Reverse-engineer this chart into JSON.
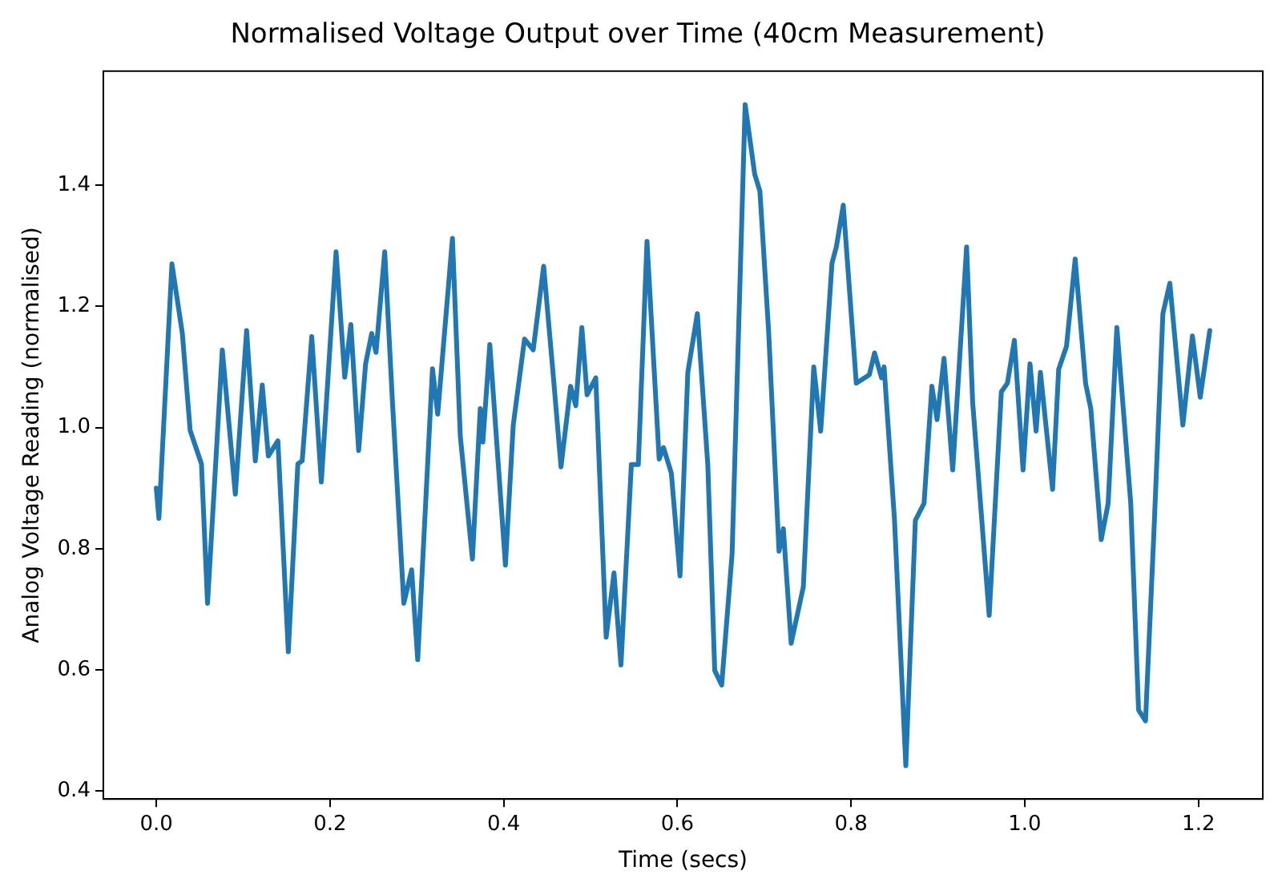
{
  "chart_data": {
    "type": "line",
    "title": "Normalised Voltage Output over Time (40cm Measurement)",
    "xlabel": "Time (secs)",
    "ylabel": "Analog Voltage Reading (normalised)",
    "xlim": [
      -0.061,
      1.274
    ],
    "ylim": [
      0.387,
      1.588
    ],
    "xticks": [
      {
        "value": 0,
        "label": "0.0"
      },
      {
        "value": 0.2,
        "label": "0.2"
      },
      {
        "value": 0.4,
        "label": "0.4"
      },
      {
        "value": 0.6,
        "label": "0.6"
      },
      {
        "value": 0.8,
        "label": "0.8"
      },
      {
        "value": 1.0,
        "label": "1.0"
      },
      {
        "value": 1.2,
        "label": "1.2"
      }
    ],
    "yticks": [
      {
        "value": 0.4,
        "label": "0.4"
      },
      {
        "value": 0.6,
        "label": "0.6"
      },
      {
        "value": 0.8,
        "label": "0.8"
      },
      {
        "value": 1.0,
        "label": "1.0"
      },
      {
        "value": 1.2,
        "label": "1.2"
      },
      {
        "value": 1.4,
        "label": "1.4"
      }
    ],
    "grid": false,
    "legend": false,
    "marker": "none",
    "line_style": "solid",
    "series": [
      {
        "color": "#1f77b4",
        "x": [
          0.0,
          0.003,
          0.018,
          0.03,
          0.039,
          0.052,
          0.059,
          0.076,
          0.091,
          0.104,
          0.114,
          0.122,
          0.129,
          0.14,
          0.152,
          0.163,
          0.168,
          0.179,
          0.19,
          0.207,
          0.217,
          0.224,
          0.233,
          0.241,
          0.248,
          0.253,
          0.263,
          0.272,
          0.285,
          0.294,
          0.301,
          0.318,
          0.324,
          0.341,
          0.35,
          0.364,
          0.373,
          0.376,
          0.384,
          0.402,
          0.411,
          0.424,
          0.434,
          0.446,
          0.457,
          0.466,
          0.477,
          0.483,
          0.49,
          0.496,
          0.506,
          0.518,
          0.527,
          0.535,
          0.547,
          0.555,
          0.565,
          0.579,
          0.584,
          0.593,
          0.603,
          0.612,
          0.623,
          0.635,
          0.643,
          0.651,
          0.663,
          0.678,
          0.689,
          0.695,
          0.705,
          0.717,
          0.722,
          0.731,
          0.745,
          0.757,
          0.765,
          0.778,
          0.783,
          0.791,
          0.806,
          0.821,
          0.827,
          0.835,
          0.838,
          0.85,
          0.863,
          0.874,
          0.884,
          0.893,
          0.899,
          0.907,
          0.917,
          0.933,
          0.94,
          0.959,
          0.973,
          0.98,
          0.988,
          0.998,
          1.006,
          1.013,
          1.018,
          1.032,
          1.039,
          1.048,
          1.058,
          1.07,
          1.076,
          1.088,
          1.096,
          1.106,
          1.122,
          1.131,
          1.139,
          1.149,
          1.159,
          1.167,
          1.182,
          1.193,
          1.202,
          1.213
        ],
        "values": [
          0.9,
          0.85,
          1.27,
          1.155,
          0.995,
          0.94,
          0.71,
          1.128,
          0.89,
          1.16,
          0.945,
          1.07,
          0.953,
          0.978,
          0.63,
          0.94,
          0.945,
          1.15,
          0.91,
          1.29,
          1.083,
          1.17,
          0.962,
          1.105,
          1.155,
          1.124,
          1.29,
          1.04,
          0.71,
          0.765,
          0.617,
          1.097,
          1.022,
          1.312,
          0.986,
          0.783,
          1.031,
          0.976,
          1.137,
          0.773,
          1.004,
          1.146,
          1.128,
          1.266,
          1.087,
          0.935,
          1.068,
          1.036,
          1.165,
          1.054,
          1.082,
          0.654,
          0.76,
          0.608,
          0.939,
          0.939,
          1.307,
          0.948,
          0.967,
          0.925,
          0.755,
          1.091,
          1.188,
          0.939,
          0.599,
          0.575,
          0.792,
          1.533,
          1.418,
          1.39,
          1.16,
          0.796,
          0.833,
          0.644,
          0.737,
          1.1,
          0.994,
          1.271,
          1.298,
          1.367,
          1.073,
          1.087,
          1.123,
          1.082,
          1.1,
          0.847,
          0.442,
          0.847,
          0.875,
          1.068,
          1.013,
          1.114,
          0.93,
          1.298,
          1.041,
          0.69,
          1.059,
          1.073,
          1.144,
          0.93,
          1.105,
          0.994,
          1.091,
          0.898,
          1.096,
          1.134,
          1.278,
          1.073,
          1.031,
          0.815,
          0.875,
          1.165,
          0.875,
          0.534,
          0.516,
          0.838,
          1.188,
          1.238,
          1.004,
          1.151,
          1.05,
          1.16
        ]
      }
    ]
  }
}
